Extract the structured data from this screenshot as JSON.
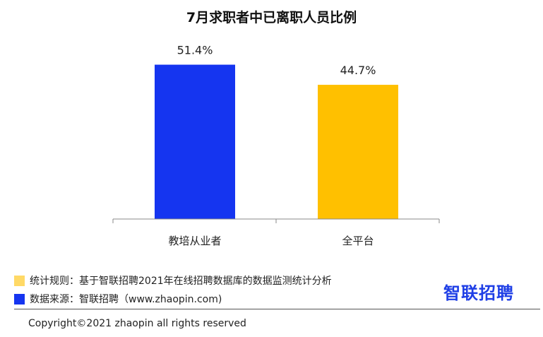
{
  "chart_data": {
    "type": "bar",
    "title": "7月求职者中已离职人员比例",
    "categories": [
      "教培从业者",
      "全平台"
    ],
    "values": [
      51.4,
      44.7
    ],
    "value_labels": [
      "51.4%",
      "44.7%"
    ],
    "colors": [
      "#1535f0",
      "#ffc000"
    ],
    "ylim": [
      0,
      60
    ],
    "grid": false,
    "xlabel": "",
    "ylabel": ""
  },
  "notes": {
    "rule": "统计规则：基于智联招聘2021年在线招聘数据库的数据监测统计分析",
    "source": "数据来源：智联招聘（www.zhaopin.com)",
    "rule_color": "#ffd966",
    "source_color": "#1535f0"
  },
  "logo_text": "智联招聘",
  "copyright": "Copyright©2021 zhaopin all rights reserved"
}
